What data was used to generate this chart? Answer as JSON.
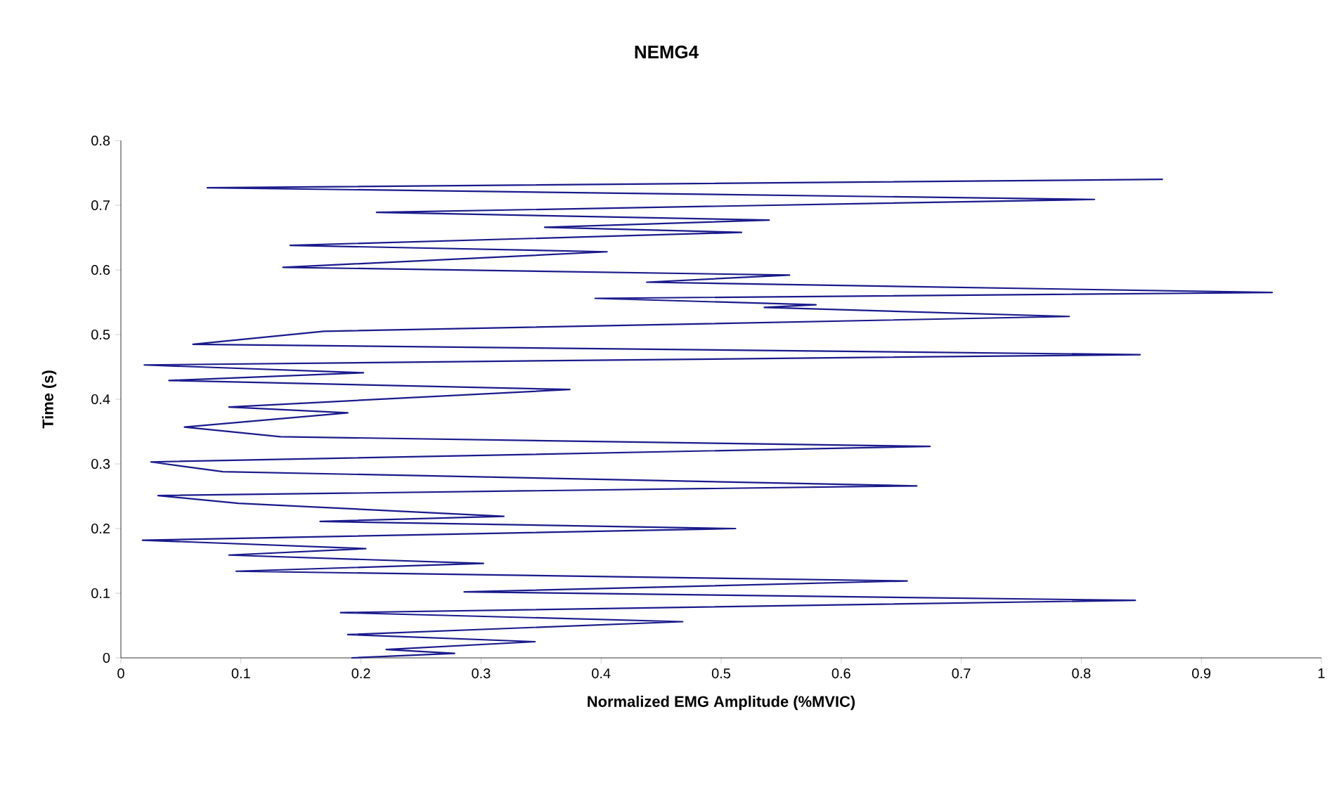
{
  "chart_data": {
    "type": "line",
    "title": "NEMG4",
    "xlabel": "Normalized EMG Amplitude (%MVIC)",
    "ylabel": "Time (s)",
    "x": [
      0.192,
      0.278,
      0.221,
      0.345,
      0.189,
      0.468,
      0.183,
      0.845,
      0.286,
      0.655,
      0.096,
      0.302,
      0.09,
      0.204,
      0.018,
      0.512,
      0.166,
      0.319,
      0.098,
      0.031,
      0.663,
      0.085,
      0.025,
      0.674,
      0.133,
      0.053,
      0.189,
      0.09,
      0.374,
      0.04,
      0.202,
      0.0195,
      0.849,
      0.06,
      0.169,
      0.79,
      0.536,
      0.579,
      0.395,
      0.959,
      0.438,
      0.557,
      0.135,
      0.405,
      0.141,
      0.517,
      0.353,
      0.54,
      0.213,
      0.811,
      0.072,
      0.868
    ],
    "values": [
      0.0,
      0.007,
      0.013,
      0.025,
      0.036,
      0.056,
      0.07,
      0.089,
      0.102,
      0.119,
      0.134,
      0.146,
      0.159,
      0.169,
      0.182,
      0.2,
      0.211,
      0.219,
      0.239,
      0.251,
      0.266,
      0.288,
      0.303,
      0.327,
      0.342,
      0.357,
      0.379,
      0.388,
      0.415,
      0.429,
      0.441,
      0.453,
      0.469,
      0.485,
      0.505,
      0.528,
      0.542,
      0.546,
      0.556,
      0.565,
      0.581,
      0.592,
      0.604,
      0.628,
      0.638,
      0.658,
      0.666,
      0.677,
      0.689,
      0.709,
      0.727,
      0.74
    ],
    "color": "#1a1a8c",
    "line_style": "solid",
    "marker": "none",
    "xlim": [
      0,
      1
    ],
    "xticks": [
      0,
      0.1,
      0.2,
      0.3,
      0.4,
      0.5,
      0.6,
      0.7,
      0.8,
      0.9,
      1
    ],
    "ylim": [
      0,
      0.8
    ],
    "yticks": [
      0,
      0.1,
      0.2,
      0.3,
      0.4,
      0.5,
      0.6,
      0.7,
      0.8
    ]
  }
}
